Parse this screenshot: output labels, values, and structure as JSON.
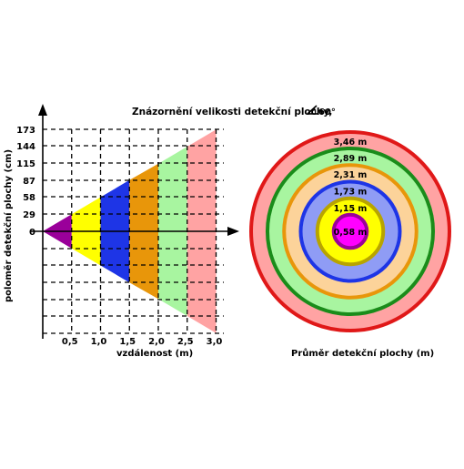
{
  "title": "Znázornění velikosti detekční plochy,",
  "angle_label": "60°",
  "left_chart": {
    "y_axis_label": "poloměr detekční plochy (cm)",
    "x_axis_label": "vzdálenost (m)",
    "y_ticks": [
      "173",
      "144",
      "115",
      "87",
      "58",
      "29",
      "0"
    ],
    "x_ticks": [
      "0,5",
      "1,0",
      "1,5",
      "2,0",
      "2,5",
      "3,0"
    ],
    "bands": [
      {
        "from_m": 0.0,
        "to_m": 0.5,
        "radius_cm": 29,
        "color": "#9a009a"
      },
      {
        "from_m": 0.5,
        "to_m": 1.0,
        "radius_cm": 58,
        "color": "#ffff00"
      },
      {
        "from_m": 1.0,
        "to_m": 1.5,
        "radius_cm": 87,
        "color": "#1e35e6"
      },
      {
        "from_m": 1.5,
        "to_m": 2.0,
        "radius_cm": 115,
        "color": "#e8960a"
      },
      {
        "from_m": 2.0,
        "to_m": 2.5,
        "radius_cm": 144,
        "color": "#a8f5a0"
      },
      {
        "from_m": 2.5,
        "to_m": 3.0,
        "radius_cm": 173,
        "color": "#ffa3a3"
      }
    ]
  },
  "right_chart": {
    "caption": "Průměr detekční plochy (m)",
    "rings": [
      {
        "label": "3,46 m",
        "diameter_m": 3.46,
        "fill": "#ffa3a3",
        "stroke": "#e01818"
      },
      {
        "label": "2,89 m",
        "diameter_m": 2.89,
        "fill": "#a8f5a0",
        "stroke": "#1a8c1a"
      },
      {
        "label": "2,31 m",
        "diameter_m": 2.31,
        "fill": "#fcd39a",
        "stroke": "#e8960a"
      },
      {
        "label": "1,73 m",
        "diameter_m": 1.73,
        "fill": "#8f9cf5",
        "stroke": "#1e35e6"
      },
      {
        "label": "1,15 m",
        "diameter_m": 1.15,
        "fill": "#ffff00",
        "stroke": "#b8a400"
      },
      {
        "label": "0,58 m",
        "diameter_m": 0.58,
        "fill": "#ff00ff",
        "stroke": "#9a009a"
      }
    ]
  }
}
